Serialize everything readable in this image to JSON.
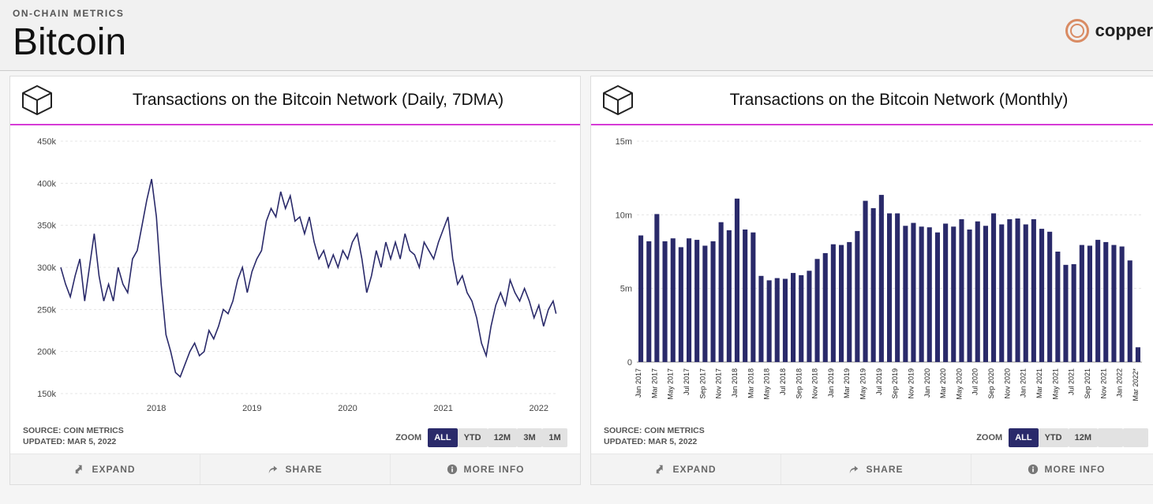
{
  "header": {
    "overline": "ON-CHAIN METRICS",
    "title": "Bitcoin",
    "brand": "copper"
  },
  "colors": {
    "accent_line": "#d63bd6",
    "series": "#2a2a6a",
    "grid": "#e4e4e4",
    "axis": "#888888",
    "bg": "#ffffff",
    "zoom_active_bg": "#2a2a6a",
    "brand_icon": "#d98b63"
  },
  "panels": {
    "left": {
      "title": "Transactions on the Bitcoin Network (Daily, 7DMA)",
      "chart": {
        "type": "line",
        "color": "#2a2a6a",
        "line_width": 1.6,
        "x_domain_years": [
          2017,
          2022.2
        ],
        "y_domain": [
          150000,
          450000
        ],
        "y_tick_step": 50000,
        "y_ticks": [
          "150k",
          "200k",
          "250k",
          "300k",
          "350k",
          "400k",
          "450k"
        ],
        "x_ticks": [
          {
            "t": 2018,
            "label": "2018"
          },
          {
            "t": 2019,
            "label": "2019"
          },
          {
            "t": 2020,
            "label": "2020"
          },
          {
            "t": 2021,
            "label": "2021"
          },
          {
            "t": 2022,
            "label": "2022"
          }
        ],
        "series": [
          [
            2017.0,
            300000
          ],
          [
            2017.05,
            280000
          ],
          [
            2017.1,
            265000
          ],
          [
            2017.15,
            290000
          ],
          [
            2017.2,
            310000
          ],
          [
            2017.25,
            260000
          ],
          [
            2017.3,
            300000
          ],
          [
            2017.35,
            340000
          ],
          [
            2017.4,
            290000
          ],
          [
            2017.45,
            260000
          ],
          [
            2017.5,
            280000
          ],
          [
            2017.55,
            260000
          ],
          [
            2017.6,
            300000
          ],
          [
            2017.65,
            280000
          ],
          [
            2017.7,
            270000
          ],
          [
            2017.75,
            310000
          ],
          [
            2017.8,
            320000
          ],
          [
            2017.85,
            350000
          ],
          [
            2017.9,
            380000
          ],
          [
            2017.95,
            405000
          ],
          [
            2018.0,
            360000
          ],
          [
            2018.05,
            280000
          ],
          [
            2018.1,
            220000
          ],
          [
            2018.15,
            200000
          ],
          [
            2018.2,
            175000
          ],
          [
            2018.25,
            170000
          ],
          [
            2018.3,
            185000
          ],
          [
            2018.35,
            200000
          ],
          [
            2018.4,
            210000
          ],
          [
            2018.45,
            195000
          ],
          [
            2018.5,
            200000
          ],
          [
            2018.55,
            225000
          ],
          [
            2018.6,
            215000
          ],
          [
            2018.65,
            230000
          ],
          [
            2018.7,
            250000
          ],
          [
            2018.75,
            245000
          ],
          [
            2018.8,
            260000
          ],
          [
            2018.85,
            285000
          ],
          [
            2018.9,
            300000
          ],
          [
            2018.95,
            270000
          ],
          [
            2019.0,
            295000
          ],
          [
            2019.05,
            310000
          ],
          [
            2019.1,
            320000
          ],
          [
            2019.15,
            355000
          ],
          [
            2019.2,
            370000
          ],
          [
            2019.25,
            360000
          ],
          [
            2019.3,
            390000
          ],
          [
            2019.35,
            370000
          ],
          [
            2019.4,
            385000
          ],
          [
            2019.45,
            355000
          ],
          [
            2019.5,
            360000
          ],
          [
            2019.55,
            340000
          ],
          [
            2019.6,
            360000
          ],
          [
            2019.65,
            330000
          ],
          [
            2019.7,
            310000
          ],
          [
            2019.75,
            320000
          ],
          [
            2019.8,
            300000
          ],
          [
            2019.85,
            315000
          ],
          [
            2019.9,
            300000
          ],
          [
            2019.95,
            320000
          ],
          [
            2020.0,
            310000
          ],
          [
            2020.05,
            330000
          ],
          [
            2020.1,
            340000
          ],
          [
            2020.15,
            310000
          ],
          [
            2020.2,
            270000
          ],
          [
            2020.25,
            290000
          ],
          [
            2020.3,
            320000
          ],
          [
            2020.35,
            300000
          ],
          [
            2020.4,
            330000
          ],
          [
            2020.45,
            310000
          ],
          [
            2020.5,
            330000
          ],
          [
            2020.55,
            310000
          ],
          [
            2020.6,
            340000
          ],
          [
            2020.65,
            320000
          ],
          [
            2020.7,
            315000
          ],
          [
            2020.75,
            300000
          ],
          [
            2020.8,
            330000
          ],
          [
            2020.85,
            320000
          ],
          [
            2020.9,
            310000
          ],
          [
            2020.95,
            330000
          ],
          [
            2021.0,
            345000
          ],
          [
            2021.05,
            360000
          ],
          [
            2021.1,
            310000
          ],
          [
            2021.15,
            280000
          ],
          [
            2021.2,
            290000
          ],
          [
            2021.25,
            270000
          ],
          [
            2021.3,
            260000
          ],
          [
            2021.35,
            240000
          ],
          [
            2021.4,
            210000
          ],
          [
            2021.45,
            195000
          ],
          [
            2021.5,
            230000
          ],
          [
            2021.55,
            255000
          ],
          [
            2021.6,
            270000
          ],
          [
            2021.65,
            255000
          ],
          [
            2021.7,
            285000
          ],
          [
            2021.75,
            270000
          ],
          [
            2021.8,
            260000
          ],
          [
            2021.85,
            275000
          ],
          [
            2021.9,
            260000
          ],
          [
            2021.95,
            240000
          ],
          [
            2022.0,
            255000
          ],
          [
            2022.05,
            230000
          ],
          [
            2022.1,
            250000
          ],
          [
            2022.15,
            260000
          ],
          [
            2022.18,
            245000
          ]
        ]
      },
      "source_line": "SOURCE: COIN METRICS",
      "updated_line": "UPDATED: MAR 5, 2022",
      "zoom_label": "ZOOM",
      "zoom_buttons": [
        {
          "label": "ALL",
          "active": true
        },
        {
          "label": "YTD",
          "active": false
        },
        {
          "label": "12M",
          "active": false
        },
        {
          "label": "3M",
          "active": false
        },
        {
          "label": "1M",
          "active": false
        }
      ],
      "footer": {
        "expand": "EXPAND",
        "share": "SHARE",
        "more": "MORE INFO"
      }
    },
    "right": {
      "title": "Transactions on the Bitcoin Network (Monthly)",
      "chart": {
        "type": "bar",
        "color": "#2a2a6a",
        "bar_width_ratio": 0.6,
        "y_domain": [
          0,
          15000000
        ],
        "y_tick_step": 5000000,
        "y_ticks": [
          "0",
          "5m",
          "10m",
          "15m"
        ],
        "x_labels": [
          "Jan 2017",
          "Mar 2017",
          "May 2017",
          "Jul 2017",
          "Sep 2017",
          "Nov 2017",
          "Jan 2018",
          "Mar 2018",
          "May 2018",
          "Jul 2018",
          "Sep 2018",
          "Nov 2018",
          "Jan 2019",
          "Mar 2019",
          "May 2019",
          "Jul 2019",
          "Sep 2019",
          "Nov 2019",
          "Jan 2020",
          "Mar 2020",
          "May 2020",
          "Jul 2020",
          "Sep 2020",
          "Nov 2020",
          "Jan 2021",
          "Mar 2021",
          "May 2021",
          "Jul 2021",
          "Sep 2021",
          "Nov 2021",
          "Jan 2022",
          "Mar 2022*"
        ],
        "values": [
          8600000,
          8200000,
          10050000,
          8200000,
          8400000,
          7800000,
          8400000,
          8300000,
          7900000,
          8200000,
          9500000,
          8950000,
          11100000,
          9000000,
          8800000,
          5850000,
          5550000,
          5700000,
          5650000,
          6050000,
          5900000,
          6200000,
          7000000,
          7400000,
          8000000,
          7950000,
          8150000,
          8900000,
          10950000,
          10450000,
          11350000,
          10100000,
          10100000,
          9250000,
          9450000,
          9200000,
          9150000,
          8800000,
          9400000,
          9200000,
          9700000,
          9000000,
          9550000,
          9250000,
          10100000,
          9350000,
          9700000,
          9750000,
          9350000,
          9700000,
          9050000,
          8850000,
          7500000,
          6600000,
          6650000,
          7950000,
          7900000,
          8300000,
          8150000,
          7950000,
          7850000,
          6900000,
          1000000
        ]
      },
      "source_line": "SOURCE: COIN METRICS",
      "updated_line": "UPDATED: MAR 5, 2022",
      "zoom_label": "ZOOM",
      "zoom_buttons": [
        {
          "label": "ALL",
          "active": true
        },
        {
          "label": "YTD",
          "active": false
        },
        {
          "label": "12M",
          "active": false
        },
        {
          "label": "",
          "active": false,
          "blank": true
        },
        {
          "label": "",
          "active": false,
          "blank": true
        }
      ],
      "footer": {
        "expand": "EXPAND",
        "share": "SHARE",
        "more": "MORE INFO"
      }
    }
  }
}
